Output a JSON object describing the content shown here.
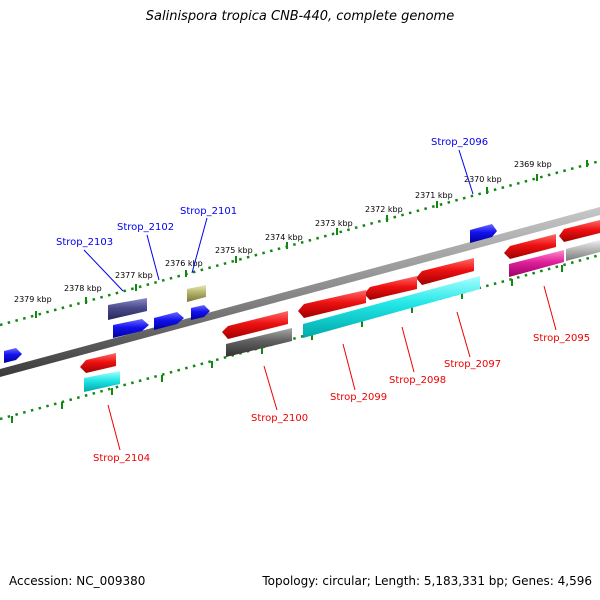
{
  "title": "Salinispora tropica CNB-440, complete genome",
  "footer": {
    "accession": "Accession: NC_009380",
    "summary": "Topology: circular; Length: 5,183,331 bp; Genes: 4,596"
  },
  "scale": {
    "ticks": [
      "2379 kbp",
      "2378 kbp",
      "2377 kbp",
      "2376 kbp",
      "2375 kbp",
      "2374 kbp",
      "2373 kbp",
      "2372 kbp",
      "2371 kbp",
      "2370 kbp",
      "2369 kbp"
    ]
  },
  "genes": [
    {
      "label": "Strop_2096",
      "strand": "forward",
      "color": "#0000ee"
    },
    {
      "label": "Strop_2101",
      "strand": "forward",
      "color": "#0000ee"
    },
    {
      "label": "Strop_2102",
      "strand": "forward",
      "color": "#0000ee"
    },
    {
      "label": "Strop_2103",
      "strand": "forward",
      "color": "#0000ee"
    },
    {
      "label": "Strop_2095",
      "strand": "reverse",
      "color": "#ee0000"
    },
    {
      "label": "Strop_2097",
      "strand": "reverse",
      "color": "#ee0000"
    },
    {
      "label": "Strop_2098",
      "strand": "reverse",
      "color": "#ee0000"
    },
    {
      "label": "Strop_2099",
      "strand": "reverse",
      "color": "#ee0000"
    },
    {
      "label": "Strop_2100",
      "strand": "reverse",
      "color": "#ee0000"
    },
    {
      "label": "Strop_2104",
      "strand": "reverse",
      "color": "#ee0000"
    }
  ],
  "colors": {
    "backbone": "#8a8a8a",
    "tick_marks": "#118811",
    "forward_label": "#0000ee",
    "reverse_label": "#ee0000",
    "gene_red": "#ee1111",
    "gene_blue": "#1111ee",
    "gene_cyan": "#22e6e6",
    "gene_navy": "#4a4a8a",
    "gene_olive": "#b3b36b",
    "gene_gray": "#606060",
    "gene_magenta": "#e0209a",
    "gene_silver": "#b0b0b0"
  }
}
